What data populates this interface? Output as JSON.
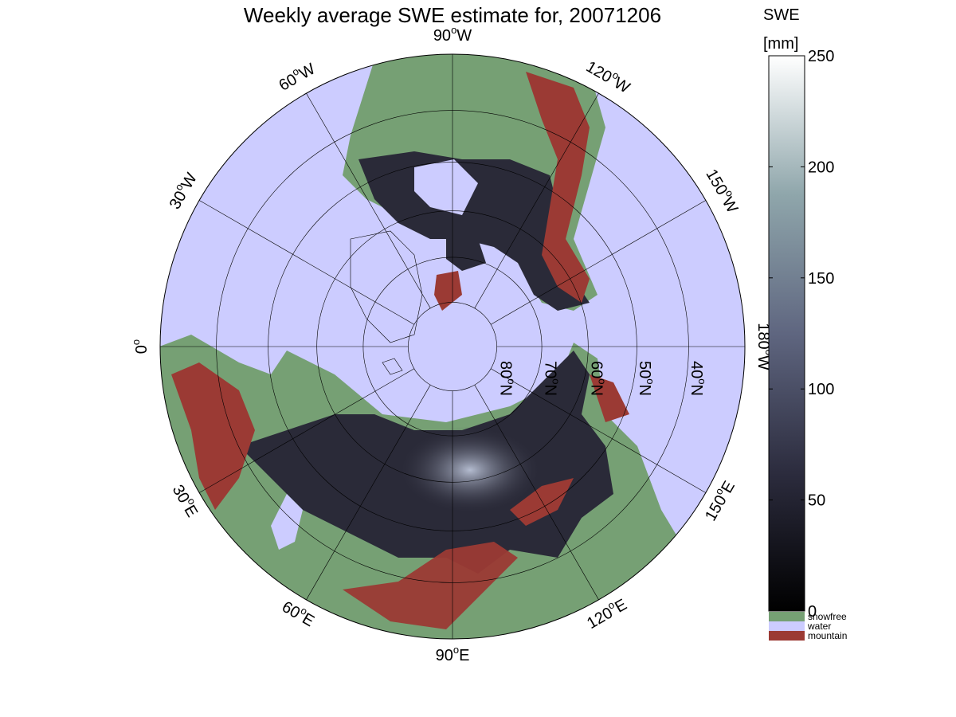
{
  "title": "Weekly average SWE estimate for, 20071206",
  "colorbar": {
    "label_line1": "SWE",
    "label_line2": "[mm]",
    "min": 0,
    "max": 250,
    "ticks": [
      "0",
      "50",
      "100",
      "150",
      "200",
      "250"
    ],
    "categories": [
      {
        "name": "snowfree",
        "color": "#76a074"
      },
      {
        "name": "water",
        "color": "#ccccff"
      },
      {
        "name": "mountain",
        "color": "#9b3a34"
      }
    ]
  },
  "map": {
    "projection": "north polar stereographic",
    "ocean_color": "#ccccff",
    "land_snowfree_color": "#76a074",
    "mountain_color": "#9b3a34",
    "snow_low_color": "#15151c",
    "snow_high_color": "#b4bcd0",
    "longitude_labels": [
      {
        "deg": "90",
        "hemi": "W"
      },
      {
        "deg": "120",
        "hemi": "W"
      },
      {
        "deg": "150",
        "hemi": "W"
      },
      {
        "deg": "180",
        "hemi": "W"
      },
      {
        "deg": "150",
        "hemi": "E"
      },
      {
        "deg": "120",
        "hemi": "E"
      },
      {
        "deg": "90",
        "hemi": "E"
      },
      {
        "deg": "60",
        "hemi": "E"
      },
      {
        "deg": "30",
        "hemi": "E"
      },
      {
        "deg": "0",
        "hemi": ""
      },
      {
        "deg": "30",
        "hemi": "W"
      },
      {
        "deg": "60",
        "hemi": "W"
      }
    ],
    "latitude_labels": [
      {
        "deg": "80",
        "hemi": "N"
      },
      {
        "deg": "70",
        "hemi": "N"
      },
      {
        "deg": "60",
        "hemi": "N"
      },
      {
        "deg": "50",
        "hemi": "N"
      },
      {
        "deg": "40",
        "hemi": "N"
      }
    ]
  }
}
